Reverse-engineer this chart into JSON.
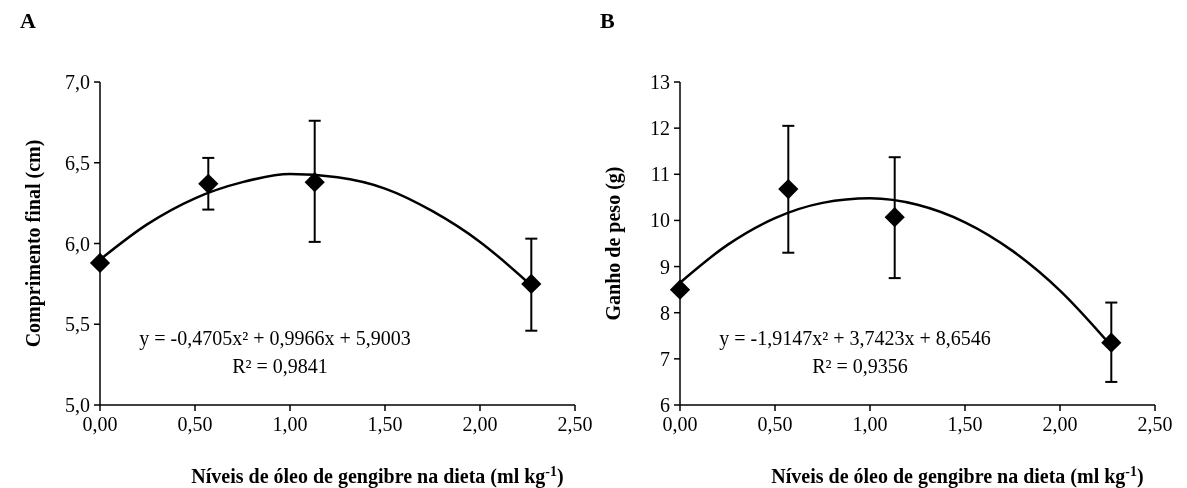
{
  "chart_data": [
    {
      "type": "scatter",
      "title": "A",
      "xlabel": "Níveis de óleo de gengibre na dieta (ml kg$^{-1}$)",
      "ylabel": "Comprimento final (cm)",
      "xlim": [
        0,
        2.5
      ],
      "xticks": [
        {
          "value": 0,
          "label": "0,00"
        },
        {
          "value": 0.5,
          "label": "0,50"
        },
        {
          "value": 1,
          "label": "1,00"
        },
        {
          "value": 1.5,
          "label": "1,50"
        },
        {
          "value": 2,
          "label": "2,00"
        },
        {
          "value": 2.5,
          "label": "2,50"
        }
      ],
      "ylim": [
        5,
        7
      ],
      "yticks": [
        {
          "value": 5,
          "label": "5,0"
        },
        {
          "value": 5.5,
          "label": "5,5"
        },
        {
          "value": 6,
          "label": "6,0"
        },
        {
          "value": 6.5,
          "label": "6,5"
        },
        {
          "value": 7,
          "label": "7,0"
        }
      ],
      "grid": false,
      "annotations": [
        "y = -0,4705x² + 0,9966x + 5,9003",
        "R² = 0,9841"
      ],
      "series": [
        {
          "marker": "diamond",
          "color": "#000000",
          "x": [
            0,
            0.57,
            1.13,
            2.27
          ],
          "values": [
            5.88,
            6.37,
            6.38,
            5.75
          ],
          "errors": [
            null,
            [
              6.21,
              6.53
            ],
            [
              6.01,
              6.76
            ],
            [
              5.46,
              6.03
            ]
          ]
        },
        {
          "type": "line",
          "color": "#000000",
          "line_style": "solid",
          "x": [
            0,
            0.25,
            0.5,
            0.75,
            1,
            1.25,
            1.5,
            1.75,
            2,
            2.27
          ],
          "values": [
            5.9,
            6.12,
            6.28,
            6.38,
            6.43,
            6.41,
            6.34,
            6.2,
            6.01,
            5.74
          ]
        }
      ]
    },
    {
      "type": "scatter",
      "title": "B",
      "xlabel": "Níveis de óleo de gengibre na dieta (ml kg$^{-1}$)",
      "ylabel": "Ganho de peso (g)",
      "xlim": [
        0,
        2.5
      ],
      "xticks": [
        {
          "value": 0,
          "label": "0,00"
        },
        {
          "value": 0.5,
          "label": "0,50"
        },
        {
          "value": 1,
          "label": "1,00"
        },
        {
          "value": 1.5,
          "label": "1,50"
        },
        {
          "value": 2,
          "label": "2,00"
        },
        {
          "value": 2.5,
          "label": "2,50"
        }
      ],
      "ylim": [
        6,
        13
      ],
      "yticks": [
        6,
        7,
        8,
        9,
        10,
        11,
        12,
        13
      ],
      "grid": false,
      "annotations": [
        "y = -1,9147x² + 3,7423x + 8,6546",
        "R² = 0,9356"
      ],
      "series": [
        {
          "marker": "diamond",
          "color": "#000000",
          "x": [
            0,
            0.57,
            1.13,
            2.27
          ],
          "values": [
            8.5,
            10.68,
            10.07,
            7.35
          ],
          "errors": [
            null,
            [
              9.3,
              12.05
            ],
            [
              8.75,
              11.37
            ],
            [
              6.5,
              8.22
            ]
          ]
        },
        {
          "type": "line",
          "color": "#000000",
          "line_style": "solid",
          "x": [
            0,
            0.25,
            0.5,
            0.75,
            1,
            1.25,
            1.5,
            1.75,
            2,
            2.27
          ],
          "values": [
            8.65,
            9.47,
            10.05,
            10.38,
            10.48,
            10.34,
            9.96,
            9.34,
            8.48,
            7.28
          ]
        }
      ]
    }
  ]
}
